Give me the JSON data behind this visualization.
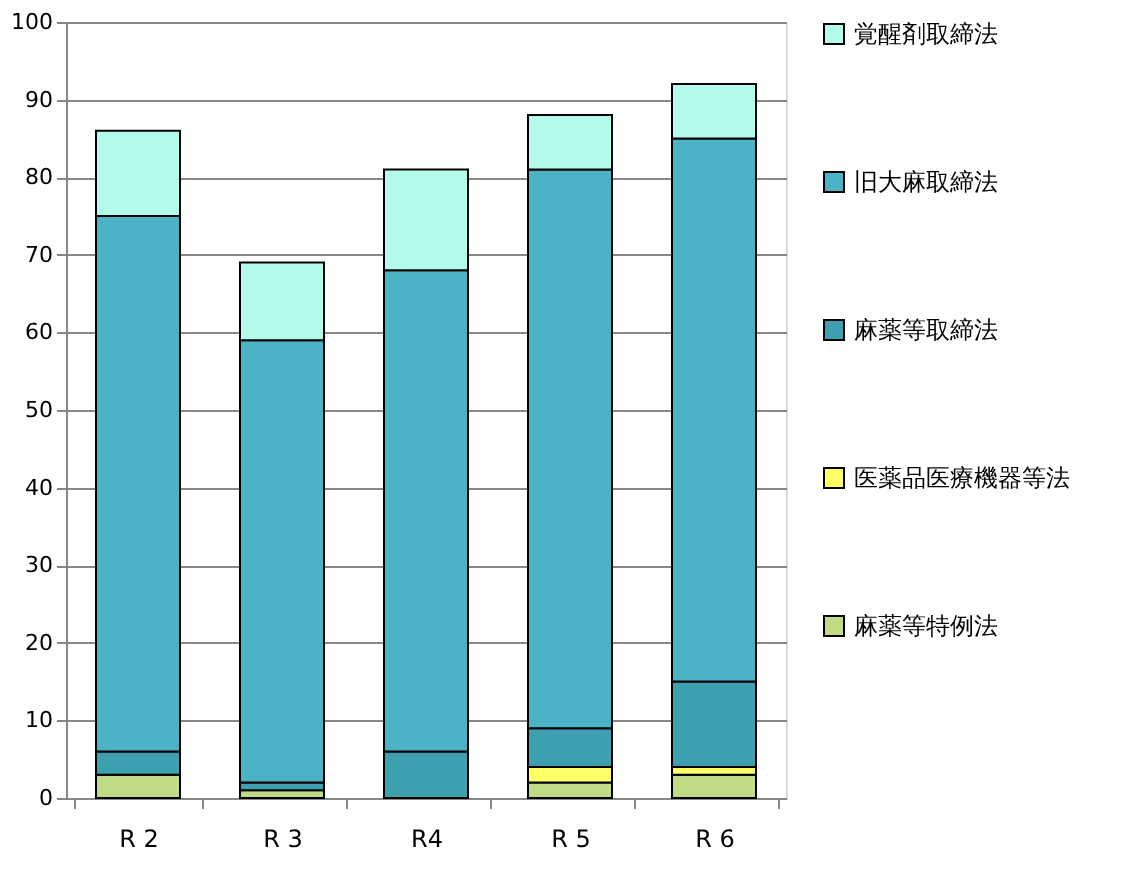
{
  "chart_data": {
    "type": "bar",
    "stacked": true,
    "categories": [
      "R 2",
      "R 3",
      "R4",
      "R 5",
      "R 6"
    ],
    "series": [
      {
        "name": "麻薬等特例法",
        "color": "#bfdc84",
        "values": [
          3,
          1,
          0,
          2,
          3
        ]
      },
      {
        "name": "医薬品医療機器等法",
        "color": "#ffff66",
        "values": [
          0,
          0,
          0,
          2,
          1
        ]
      },
      {
        "name": "麻薬等取締法",
        "color": "#3e9fb0",
        "values": [
          3,
          1,
          6,
          5,
          11
        ]
      },
      {
        "name": "旧大麻取締法",
        "color": "#4bb3c5",
        "values": [
          69,
          57,
          62,
          72,
          70
        ]
      },
      {
        "name": "覚醒剤取締法",
        "color": "#b3fcec",
        "values": [
          11,
          10,
          13,
          7,
          7
        ]
      }
    ],
    "ylim": [
      0,
      100
    ],
    "yticks": [
      0,
      10,
      20,
      30,
      40,
      50,
      60,
      70,
      80,
      90,
      100
    ],
    "grid": "y",
    "legend": "right"
  }
}
